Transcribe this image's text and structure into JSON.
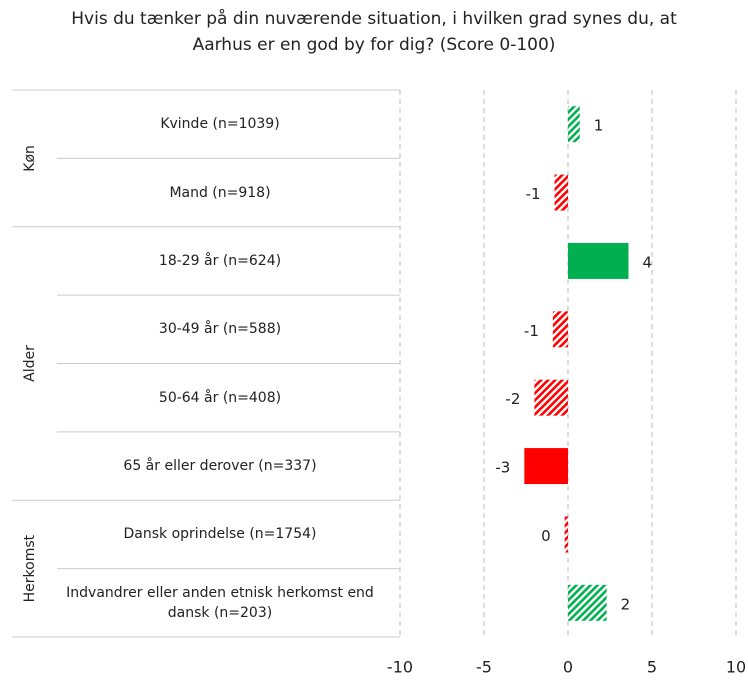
{
  "chart_data": {
    "type": "hbar",
    "title": "Hvis du tænker på din nuværende situation, i hvilken grad synes du, at Aarhus er en god by for dig? (Score 0-100)",
    "categories": [
      "Kvinde (n=1039)",
      "Mand (n=918)",
      "18-29 år (n=624)",
      "30-49 år (n=588)",
      "50-64 år (n=408)",
      "65 år eller derover (n=337)",
      "Dansk oprindelse (n=1754)",
      "Indvandrer eller anden etnisk herkomst end dansk (n=203)"
    ],
    "category_groups": [
      "Køn",
      "Køn",
      "Alder",
      "Alder",
      "Alder",
      "Alder",
      "Herkomst",
      "Herkomst"
    ],
    "values": [
      0.7,
      -0.8,
      3.6,
      -0.9,
      -2.0,
      -2.6,
      -0.2,
      2.3
    ],
    "value_labels": [
      "1",
      "-1",
      "4",
      "-1",
      "-2",
      "-3",
      "0",
      "2"
    ],
    "colors": [
      "#00b050",
      "#ff0000",
      "#00b050",
      "#ff0000",
      "#ff0000",
      "#ff0000",
      "#ff0000",
      "#00b050"
    ],
    "fill_styles": [
      "hatched",
      "hatched",
      "solid",
      "hatched",
      "hatched",
      "solid",
      "hatched",
      "hatched"
    ],
    "xlim": [
      -10,
      10
    ],
    "xticks": [
      -10,
      -5,
      0,
      5,
      10
    ],
    "grid": true
  }
}
